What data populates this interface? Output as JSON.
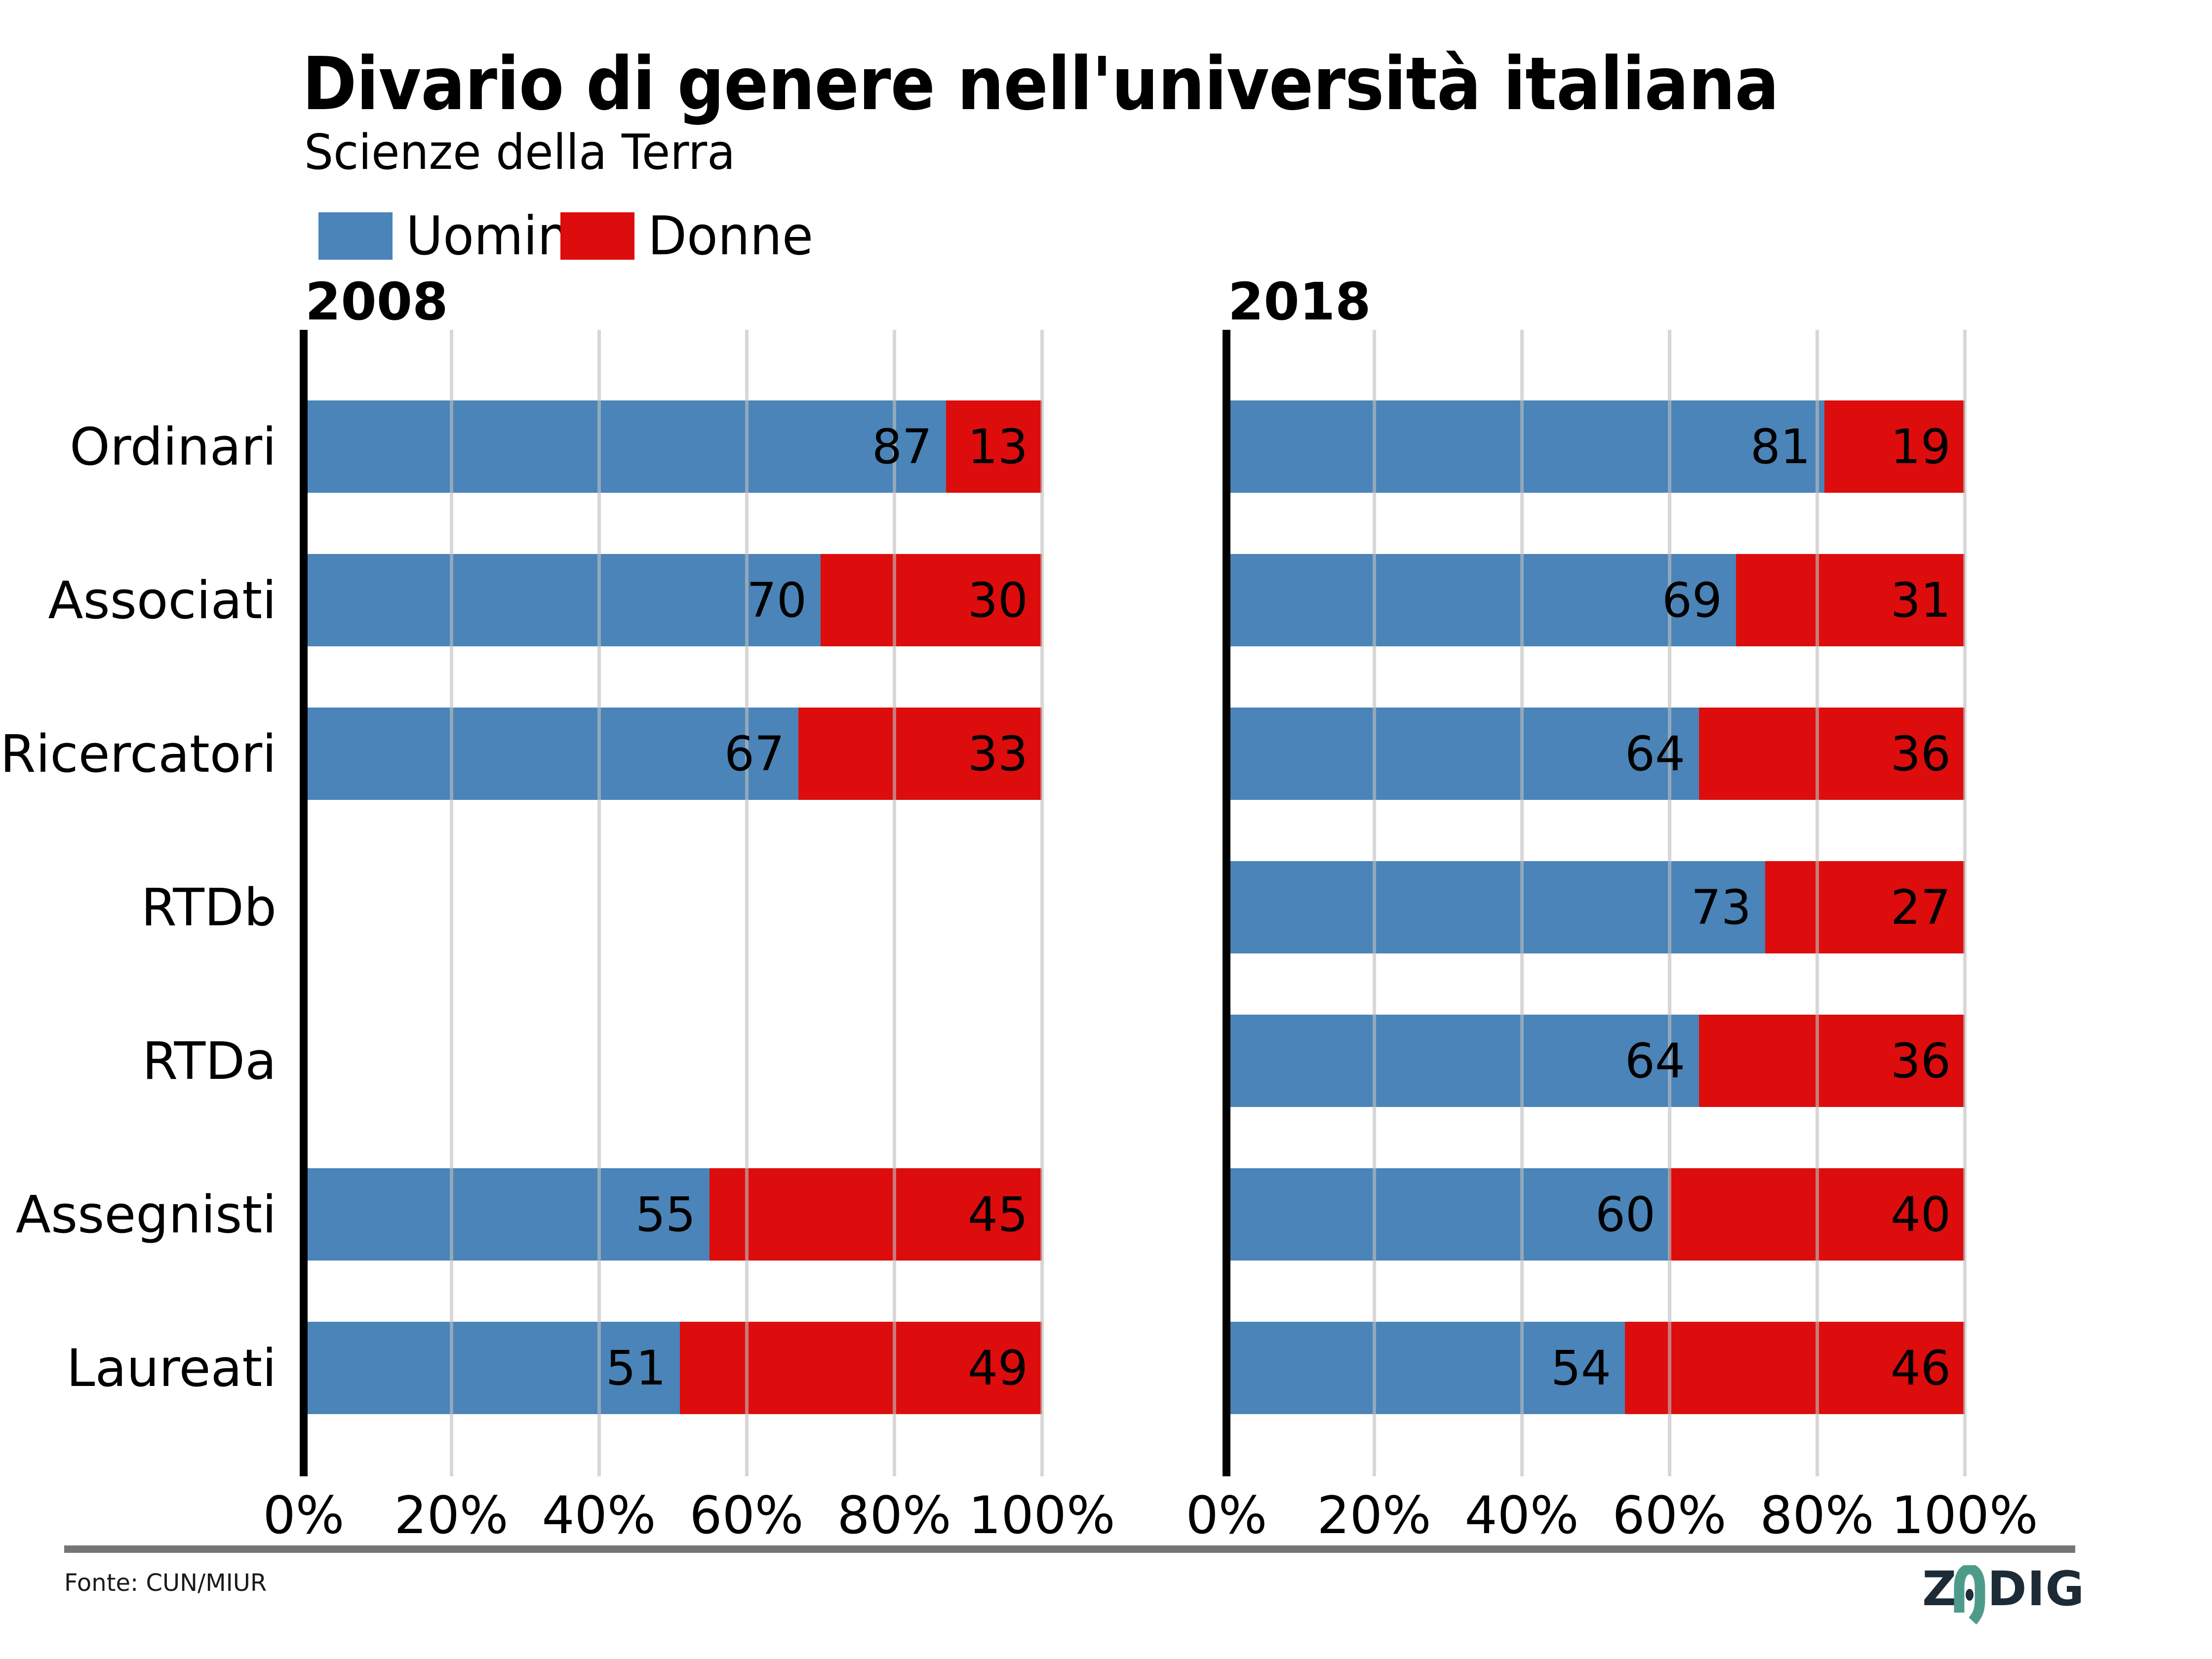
{
  "title": "Divario di genere nell'università italiana",
  "subtitle": "Scienze della Terra",
  "legend": [
    {
      "label": "Uomini",
      "color": "#4A84B8"
    },
    {
      "label": "Donne",
      "color": "#DC0D0C"
    }
  ],
  "colors": {
    "uomini": "#4A84B8",
    "donne": "#DC0D0C",
    "gridline": "rgba(190,190,190,0.62)",
    "axis": "#000000",
    "separator": "#757575",
    "logo_dark": "#1C2B36",
    "logo_teal": "#4E9B8C"
  },
  "source": "Fonte: CUN/MIUR",
  "logo": {
    "left": "Z",
    "right": "DIG",
    "full": "ZADIG"
  },
  "chart_data": {
    "type": "bar",
    "orientation": "horizontal",
    "stacked": true,
    "unit": "percent",
    "title": "Divario di genere nell'università italiana",
    "subtitle": "Scienze della Terra",
    "categories": [
      "Ordinari",
      "Associati",
      "Ricercatori",
      "RTDb",
      "RTDa",
      "Assegnisti",
      "Laureati"
    ],
    "x_ticks": [
      "0%",
      "20%",
      "40%",
      "60%",
      "80%",
      "100%"
    ],
    "xlim": [
      0,
      100
    ],
    "gridlines_pct": [
      20,
      40,
      60,
      80,
      100
    ],
    "grid": true,
    "legend_position": "top-left",
    "panels": [
      {
        "year": "2008",
        "series": [
          {
            "name": "Uomini",
            "values": [
              87,
              70,
              67,
              null,
              null,
              55,
              51
            ]
          },
          {
            "name": "Donne",
            "values": [
              13,
              30,
              33,
              null,
              null,
              45,
              49
            ]
          }
        ]
      },
      {
        "year": "2018",
        "series": [
          {
            "name": "Uomini",
            "values": [
              81,
              69,
              64,
              73,
              64,
              60,
              54
            ]
          },
          {
            "name": "Donne",
            "values": [
              19,
              31,
              36,
              27,
              36,
              40,
              46
            ]
          }
        ]
      }
    ]
  }
}
